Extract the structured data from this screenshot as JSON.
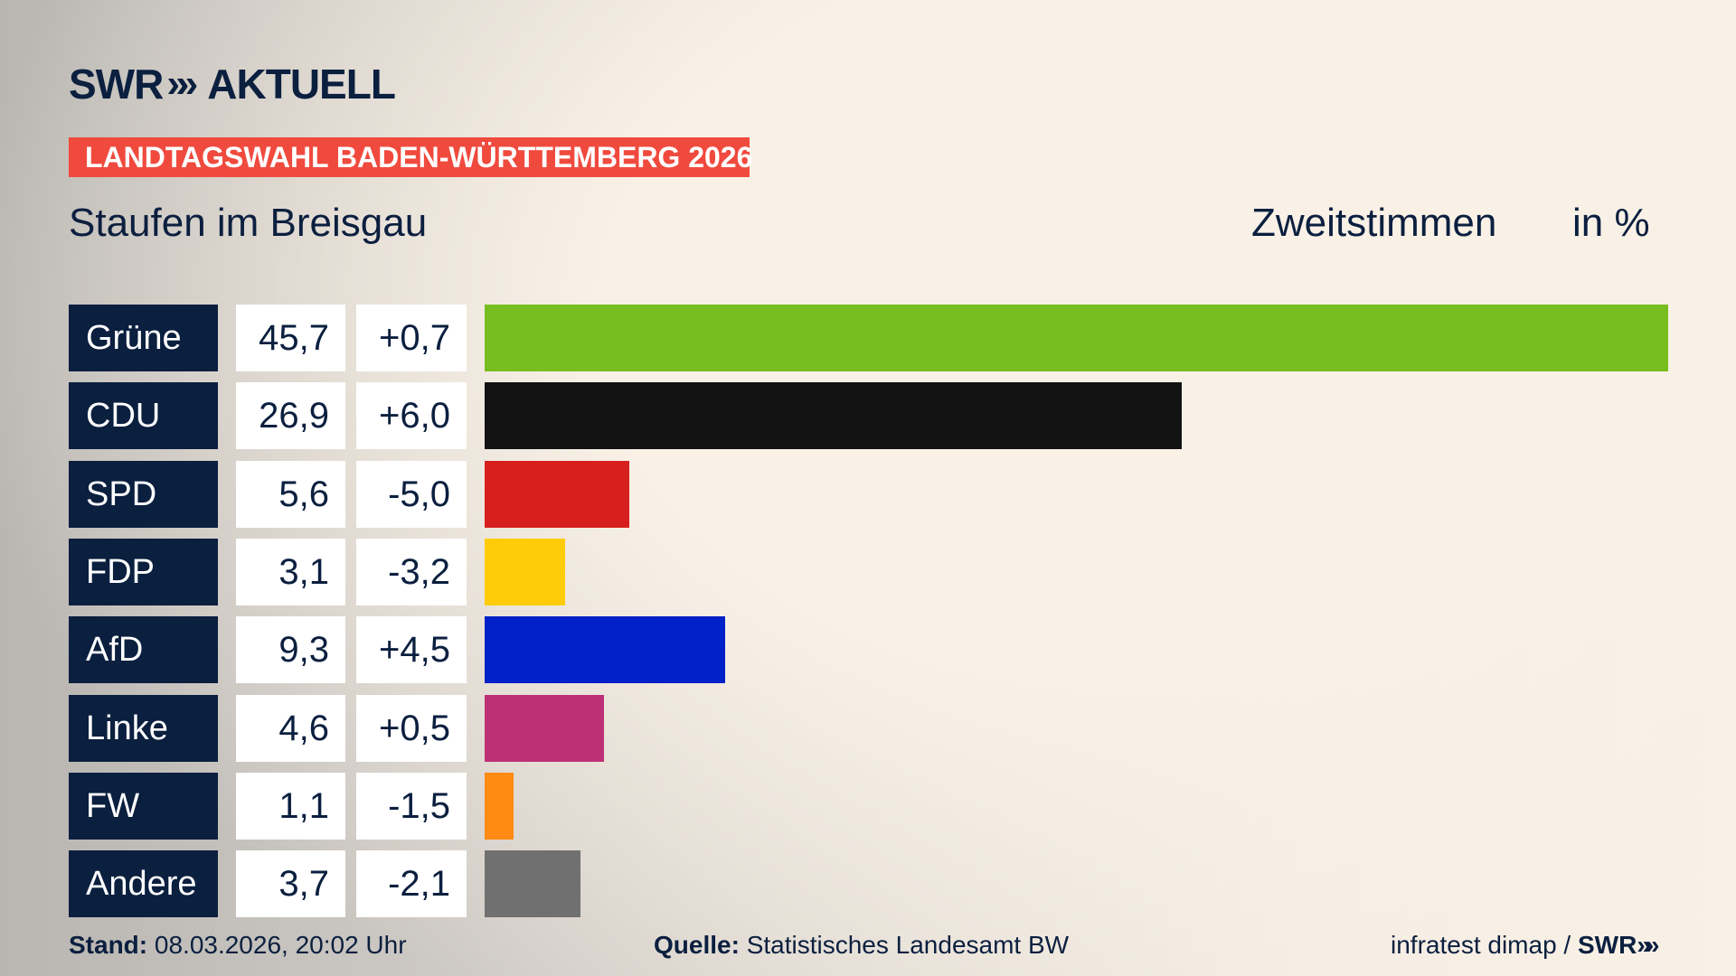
{
  "header": {
    "logo_text": "SWR",
    "logo_suffix": "AKTUELL",
    "banner": "LANDTAGSWAHL BADEN-WÜRTTEMBERG 2026",
    "subtitle": "Staufen im Breisgau",
    "measure": "Zweitstimmen",
    "unit": "in %"
  },
  "chart_data": {
    "type": "bar",
    "orientation": "horizontal",
    "categories": [
      "Grüne",
      "CDU",
      "SPD",
      "FDP",
      "AfD",
      "Linke",
      "FW",
      "Andere"
    ],
    "values": [
      45.7,
      26.9,
      5.6,
      3.1,
      9.3,
      4.6,
      1.1,
      3.7
    ],
    "value_labels": [
      "45,7",
      "26,9",
      "5,6",
      "3,1",
      "9,3",
      "4,6",
      "1,1",
      "3,7"
    ],
    "changes": [
      "+0,7",
      "+6,0",
      "-5,0",
      "-3,2",
      "+4,5",
      "+0,5",
      "-1,5",
      "-2,1"
    ],
    "colors": [
      "#78be20",
      "#121212",
      "#d7201e",
      "#ffcc0a",
      "#0020c8",
      "#be3075",
      "#ff8a14",
      "#707070"
    ],
    "xlim": [
      0,
      45.7
    ]
  },
  "footer": {
    "stand_label": "Stand:",
    "stand_value": "08.03.2026, 20:02 Uhr",
    "source_label": "Quelle:",
    "source_value": "Statistisches Landesamt BW",
    "credit": "infratest dimap /",
    "credit_logo": "SWR"
  }
}
